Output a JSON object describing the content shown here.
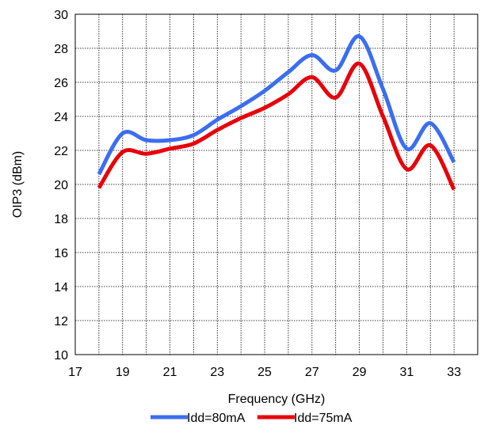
{
  "chart_data": {
    "type": "line",
    "title": "",
    "xlabel": "Frequency (GHz)",
    "ylabel": "OIP3 (dBm)",
    "xlim": [
      17,
      34
    ],
    "ylim": [
      10,
      30
    ],
    "x_ticks": [
      17,
      19,
      21,
      23,
      25,
      27,
      29,
      31,
      33
    ],
    "y_ticks": [
      10,
      12,
      14,
      16,
      18,
      20,
      22,
      24,
      26,
      28,
      30
    ],
    "grid": true,
    "legend_position": "bottom-center",
    "series": [
      {
        "name": "Idd=80mA",
        "color": "#3b6ef0",
        "x": [
          18,
          19,
          20,
          21,
          22,
          23,
          24,
          25,
          26,
          27,
          28,
          29,
          30,
          31,
          32,
          33
        ],
        "y": [
          20.6,
          23.0,
          22.6,
          22.6,
          22.9,
          23.8,
          24.6,
          25.5,
          26.6,
          27.6,
          26.7,
          28.7,
          25.6,
          22.1,
          23.6,
          21.3
        ]
      },
      {
        "name": "Idd=75mA",
        "color": "#e8000a",
        "x": [
          18,
          19,
          20,
          21,
          22,
          23,
          24,
          25,
          26,
          27,
          28,
          29,
          30,
          31,
          32,
          33
        ],
        "y": [
          19.8,
          21.9,
          21.8,
          22.1,
          22.4,
          23.2,
          23.9,
          24.5,
          25.3,
          26.3,
          25.1,
          27.1,
          24.0,
          20.9,
          22.3,
          19.7
        ]
      }
    ]
  }
}
